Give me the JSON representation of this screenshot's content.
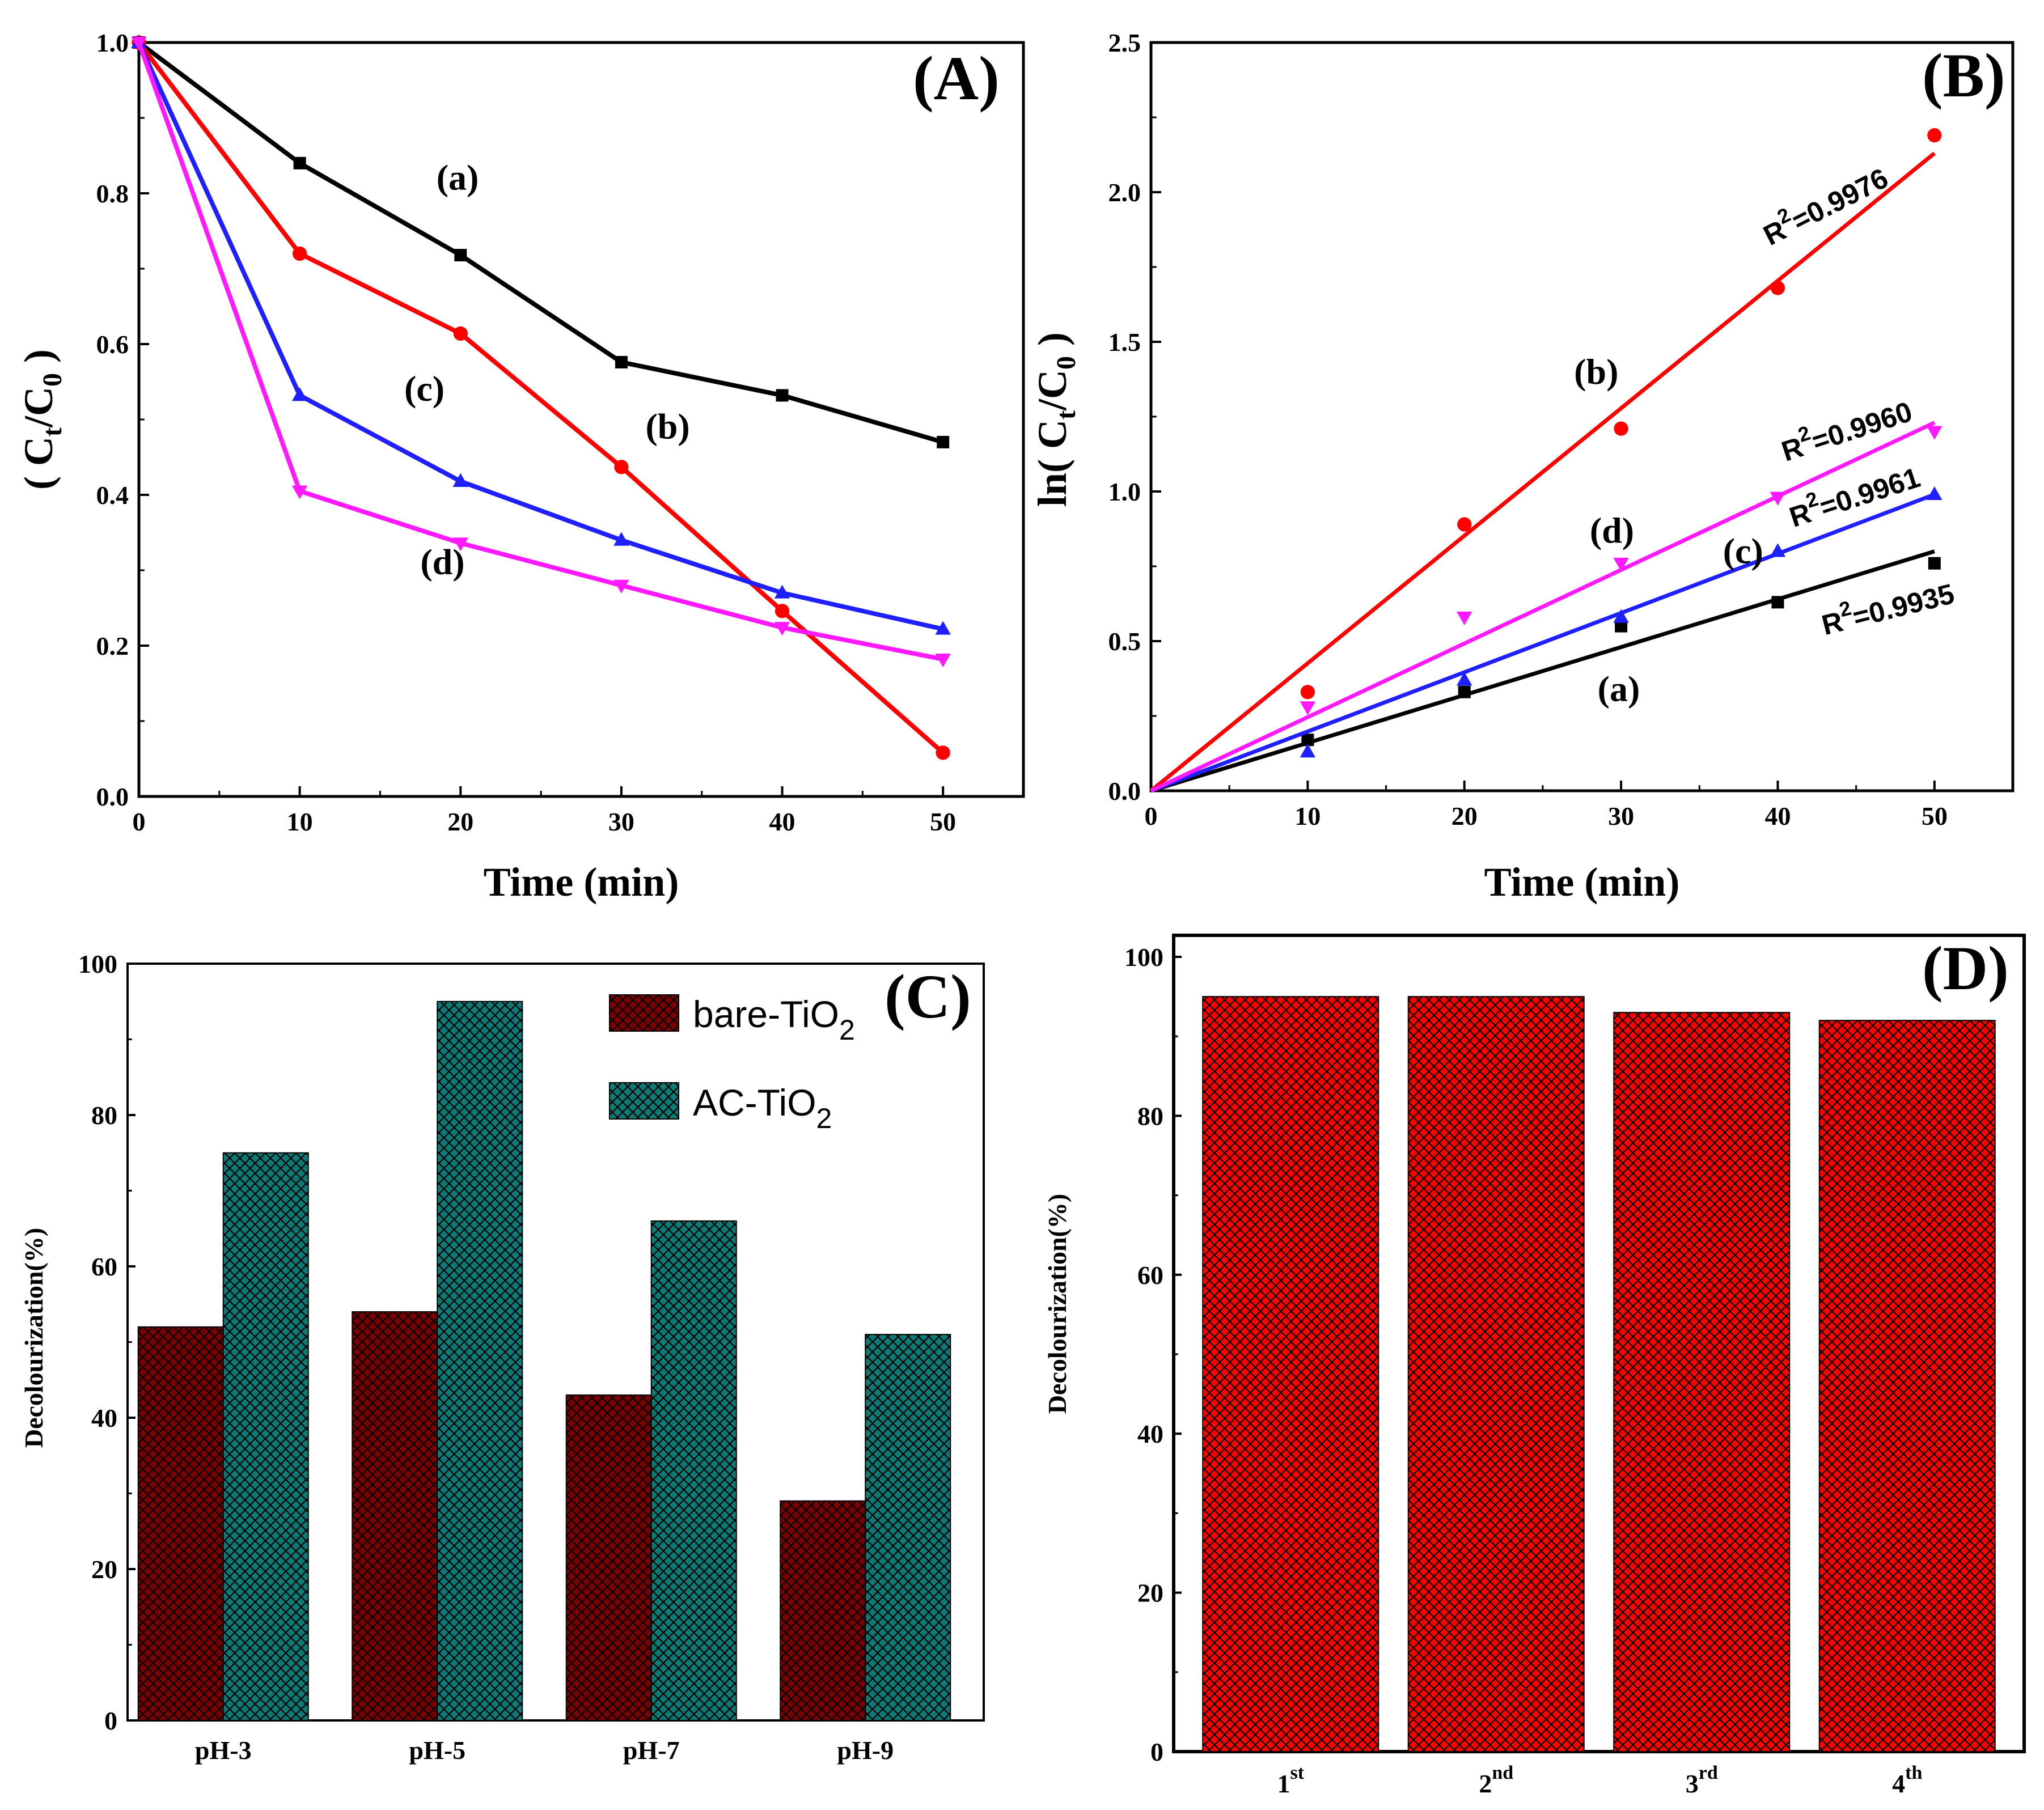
{
  "colors": {
    "a": "#000000",
    "b": "#ff0000",
    "c": "#1f1fff",
    "d": "#ff19ff",
    "bare": "#7a0000",
    "ac": "#0d7a75",
    "cycle": "#ff0000"
  },
  "chart_data": [
    {
      "id": "A",
      "type": "line",
      "panel_label": "(A)",
      "xlabel": "Time (min)",
      "ylabel_main": "( C",
      "ylabel_sub1": "t",
      "ylabel_mid": "/C",
      "ylabel_sub2": "0",
      "ylabel_end": " )",
      "xlim": [
        0,
        55
      ],
      "ylim": [
        0.0,
        1.0
      ],
      "xticks": [
        0,
        10,
        20,
        30,
        40,
        50
      ],
      "xtick_labels": [
        "0",
        "10",
        "20",
        "30",
        "40",
        "50"
      ],
      "yticks": [
        0.0,
        0.2,
        0.4,
        0.6,
        0.8,
        1.0
      ],
      "ytick_labels": [
        "0.0",
        "0.2",
        "0.4",
        "0.6",
        "0.8",
        "1.0"
      ],
      "x": [
        0,
        10,
        20,
        30,
        40,
        50
      ],
      "series": [
        {
          "name": "(a)",
          "values": [
            1.0,
            0.84,
            0.718,
            0.576,
            0.532,
            0.47
          ],
          "marker": "square",
          "label_at": [
            18.5,
            0.805
          ]
        },
        {
          "name": "(b)",
          "values": [
            1.0,
            0.72,
            0.614,
            0.437,
            0.246,
            0.058
          ],
          "marker": "circle",
          "label_at": [
            31.5,
            0.475
          ]
        },
        {
          "name": "(c)",
          "values": [
            1.0,
            0.532,
            0.418,
            0.34,
            0.27,
            0.222
          ],
          "marker": "triangle-up",
          "label_at": [
            16.5,
            0.525
          ]
        },
        {
          "name": "(d)",
          "values": [
            1.0,
            0.405,
            0.336,
            0.28,
            0.224,
            0.182
          ],
          "marker": "triangle-down",
          "label_at": [
            17.5,
            0.295
          ]
        }
      ]
    },
    {
      "id": "B",
      "type": "scatter",
      "panel_label": "(B)",
      "xlabel": "Time (min)",
      "ylabel_main": "ln( C",
      "ylabel_sub1": "t",
      "ylabel_mid": "/C",
      "ylabel_sub2": "0",
      "ylabel_end": " )",
      "xlim": [
        0,
        55
      ],
      "ylim": [
        0.0,
        2.5
      ],
      "xticks": [
        0,
        10,
        20,
        30,
        40,
        50
      ],
      "xtick_labels": [
        "0",
        "10",
        "20",
        "30",
        "40",
        "50"
      ],
      "yticks": [
        0.0,
        0.5,
        1.0,
        1.5,
        2.0,
        2.5
      ],
      "ytick_labels": [
        "0.0",
        "0.5",
        "1.0",
        "1.5",
        "2.0",
        "2.5"
      ],
      "x": [
        10,
        20,
        30,
        40,
        50
      ],
      "series": [
        {
          "name": "(a)",
          "values": [
            0.17,
            0.33,
            0.55,
            0.63,
            0.76
          ],
          "fit_end": 0.8,
          "r2_base": "R",
          "r2_sup": "2",
          "r2_value": "=0.9935",
          "marker": "square",
          "label_at": [
            28.5,
            0.3
          ],
          "r2_at": [
            43,
            0.52
          ],
          "r2_angle": -14
        },
        {
          "name": "(b)",
          "values": [
            0.33,
            0.89,
            1.21,
            1.68,
            2.19
          ],
          "fit_end": 2.13,
          "r2_base": "R",
          "r2_sup": "2",
          "r2_value": "=0.9976",
          "marker": "circle",
          "label_at": [
            27,
            1.36
          ],
          "r2_at": [
            39.5,
            1.82
          ],
          "r2_angle": -27
        },
        {
          "name": "(c)",
          "values": [
            0.13,
            0.37,
            0.58,
            0.8,
            0.99
          ],
          "fit_end": 0.99,
          "r2_base": "R",
          "r2_sup": "2",
          "r2_value": "=0.9961",
          "marker": "triangle-up",
          "label_at": [
            36.5,
            0.76
          ],
          "r2_at": [
            41,
            0.88
          ],
          "r2_angle": -18
        },
        {
          "name": "(d)",
          "values": [
            0.28,
            0.58,
            0.76,
            0.98,
            1.2
          ],
          "fit_end": 1.23,
          "r2_base": "R",
          "r2_sup": "2",
          "r2_value": "=0.9960",
          "marker": "triangle-down",
          "label_at": [
            28,
            0.83
          ],
          "r2_at": [
            40.5,
            1.1
          ],
          "r2_angle": -18
        }
      ]
    },
    {
      "id": "C",
      "type": "bar",
      "panel_label": "(C)",
      "ylabel": "Decolourization(%)",
      "ylim": [
        0,
        100
      ],
      "yticks": [
        0,
        20,
        40,
        60,
        80,
        100
      ],
      "ytick_labels": [
        "0",
        "20",
        "40",
        "60",
        "80",
        "100"
      ],
      "categories": [
        "pH-3",
        "pH-5",
        "pH-7",
        "pH-9"
      ],
      "series": [
        {
          "name_main": "bare-TiO",
          "name_sub": "2",
          "values": [
            52,
            54,
            43,
            29
          ],
          "color_key": "bare"
        },
        {
          "name_main": "AC-TiO",
          "name_sub": "2",
          "values": [
            75,
            95,
            66,
            51
          ],
          "color_key": "ac"
        }
      ],
      "legend_position": "top-center"
    },
    {
      "id": "D",
      "type": "bar",
      "panel_label": "(D)",
      "ylabel": "Decolourization(%)",
      "ylim": [
        0,
        100
      ],
      "yticks": [
        0,
        20,
        40,
        60,
        80,
        100
      ],
      "ytick_labels": [
        "0",
        "20",
        "40",
        "60",
        "80",
        "100"
      ],
      "categories": [
        {
          "num": "1",
          "sup": "st"
        },
        {
          "num": "2",
          "sup": "nd"
        },
        {
          "num": "3",
          "sup": "rd"
        },
        {
          "num": "4",
          "sup": "th"
        }
      ],
      "values": [
        95,
        95,
        93,
        92
      ]
    }
  ]
}
